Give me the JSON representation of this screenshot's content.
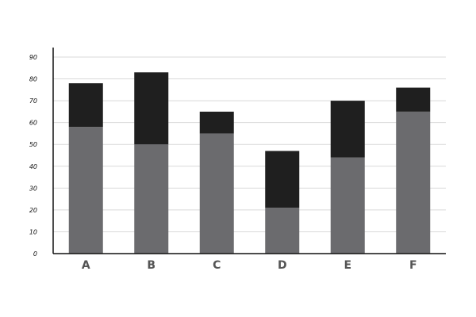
{
  "chart_data": {
    "type": "bar",
    "stacked": true,
    "categories": [
      "A",
      "B",
      "C",
      "D",
      "E",
      "F"
    ],
    "series": [
      {
        "values": [
          58,
          50,
          55,
          21,
          44,
          65
        ],
        "color": "#6b6b6e"
      },
      {
        "values": [
          20,
          33,
          10,
          26,
          26,
          11
        ],
        "color": "#1f1f1f"
      }
    ],
    "ylim": [
      0,
      90
    ],
    "yticks": [
      0,
      10,
      20,
      30,
      40,
      50,
      60,
      70,
      80,
      90
    ],
    "grid": true,
    "legend": "none",
    "title": "",
    "xlabel": "",
    "ylabel": ""
  }
}
